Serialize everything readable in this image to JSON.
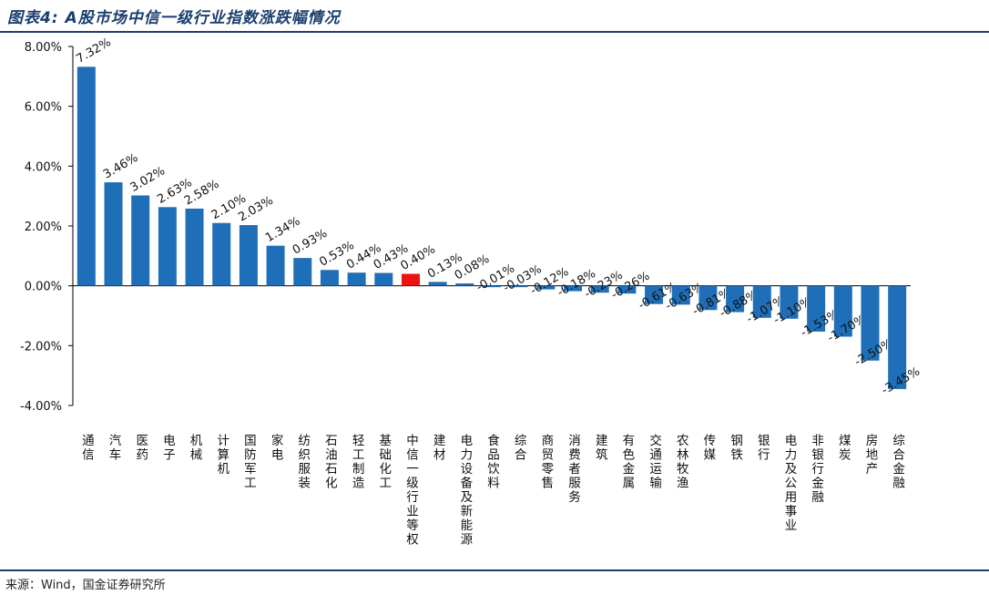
{
  "header": {
    "title": "图表4: A股市场中信一级行业指数涨跌幅情况"
  },
  "footer": {
    "source": "来源：Wind，国金证券研究所"
  },
  "colors": {
    "bar": "#1f6fb8",
    "highlight": "#ee1111",
    "frame": "#1a3e6e",
    "axis": "#000000"
  },
  "chart_data": {
    "type": "bar",
    "title": "图表4: A股市场中信一级行业指数涨跌幅情况",
    "xlabel": "",
    "ylabel": "",
    "ylim": [
      -4,
      8
    ],
    "yticks": [
      "8.00%",
      "6.00%",
      "4.00%",
      "2.00%",
      "0.00%",
      "-2.00%",
      "-4.00%"
    ],
    "ytick_values": [
      8,
      6,
      4,
      2,
      0,
      -2,
      -4
    ],
    "grid": false,
    "highlight_category": "中信一级行业等权",
    "categories": [
      "通信",
      "汽车",
      "医药",
      "电子",
      "机械",
      "计算机",
      "国防军工",
      "家电",
      "纺织服装",
      "石油石化",
      "轻工制造",
      "基础化工",
      "中信一级行业等权",
      "建材",
      "电力设备及新能源",
      "食品饮料",
      "综合",
      "商贸零售",
      "消费者服务",
      "建筑",
      "有色金属",
      "交通运输",
      "农林牧渔",
      "传媒",
      "钢铁",
      "银行",
      "电力及公用事业",
      "非银行金融",
      "煤炭",
      "房地产",
      "综合金融"
    ],
    "values": [
      7.32,
      3.46,
      3.02,
      2.63,
      2.58,
      2.1,
      2.03,
      1.34,
      0.93,
      0.53,
      0.44,
      0.43,
      0.4,
      0.13,
      0.08,
      -0.01,
      -0.03,
      -0.12,
      -0.18,
      -0.23,
      -0.26,
      -0.61,
      -0.63,
      -0.81,
      -0.88,
      -1.07,
      -1.1,
      -1.53,
      -1.7,
      -2.5,
      -3.45
    ],
    "labels": [
      "7.32%",
      "3.46%",
      "3.02%",
      "2.63%",
      "2.58%",
      "2.10%",
      "2.03%",
      "1.34%",
      "0.93%",
      "0.53%",
      "0.44%",
      "0.43%",
      "0.40%",
      "0.13%",
      "0.08%",
      "-0.01%",
      "-0.03%",
      "-0.12%",
      "-0.18%",
      "-0.23%",
      "-0.26%",
      "-0.61%",
      "-0.63%",
      "-0.81%",
      "-0.88%",
      "-1.07%",
      "-1.10%",
      "-1.53%",
      "-1.70%",
      "-2.50%",
      "-3.45%"
    ]
  }
}
